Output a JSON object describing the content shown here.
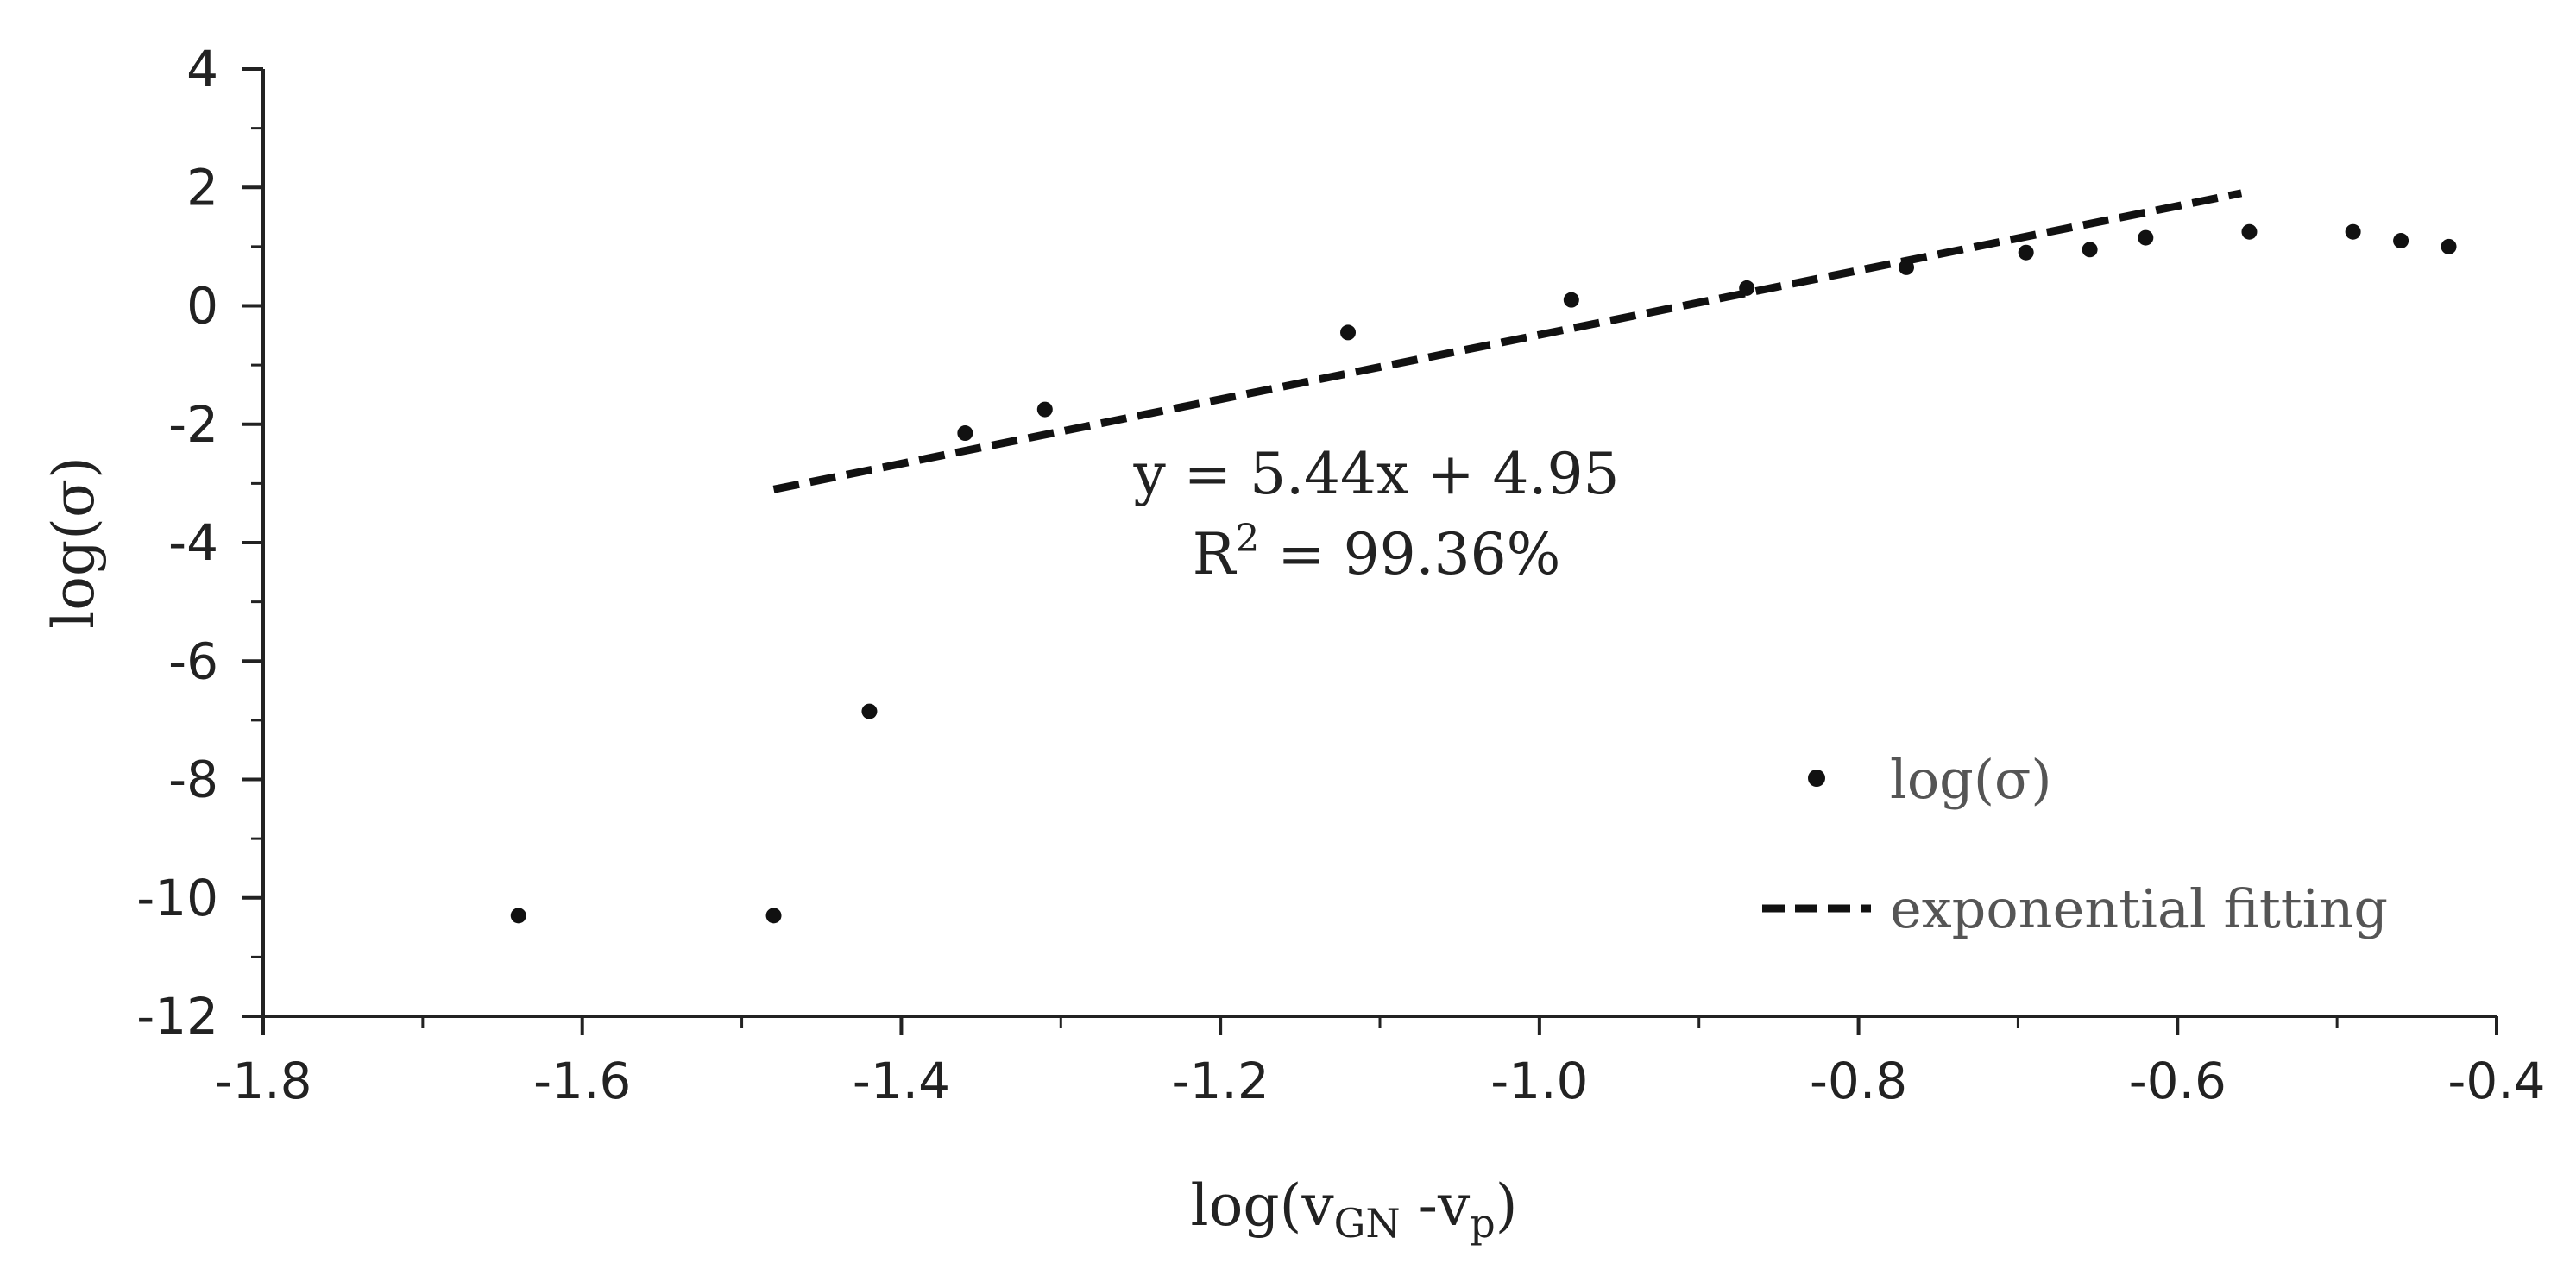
{
  "chart_data": {
    "type": "scatter",
    "xlabel": {
      "main": "log(v",
      "sub1": "GN",
      "mid": " -v",
      "sub2": "p",
      "end": ")"
    },
    "ylabel": "log(σ)",
    "xlim": [
      -1.8,
      -0.4
    ],
    "ylim": [
      -12,
      4
    ],
    "x_ticks": [
      -1.8,
      -1.6,
      -1.4,
      -1.2,
      -1.0,
      -0.8,
      -0.6,
      -0.4
    ],
    "x_tick_labels": [
      "-1.8",
      "-1.6",
      "-1.4",
      "-1.2",
      "-1.0",
      "-0.8",
      "-0.6",
      "-0.4"
    ],
    "y_ticks": [
      -12,
      -10,
      -8,
      -6,
      -4,
      -2,
      0,
      2,
      4
    ],
    "y_tick_labels": [
      "-12",
      "-10",
      "-8",
      "-6",
      "-4",
      "-2",
      "0",
      "2",
      "4"
    ],
    "grid": false,
    "legend_position": "lower-right",
    "series": [
      {
        "name": "log(σ)",
        "kind": "points",
        "color": "#111111",
        "points": [
          [
            -1.64,
            -10.3
          ],
          [
            -1.48,
            -10.3
          ],
          [
            -1.42,
            -6.85
          ],
          [
            -1.36,
            -2.15
          ],
          [
            -1.31,
            -1.75
          ],
          [
            -1.12,
            -0.45
          ],
          [
            -0.98,
            0.1
          ],
          [
            -0.87,
            0.3
          ],
          [
            -0.77,
            0.65
          ],
          [
            -0.695,
            0.9
          ],
          [
            -0.655,
            0.95
          ],
          [
            -0.62,
            1.15
          ],
          [
            -0.555,
            1.25
          ],
          [
            -0.49,
            1.25
          ],
          [
            -0.46,
            1.1
          ],
          [
            -0.43,
            1.0
          ]
        ]
      },
      {
        "name": "exponential fitting",
        "kind": "dashed-line",
        "color": "#111111",
        "x_range": [
          -1.48,
          -0.56
        ],
        "slope": 5.44,
        "intercept": 4.95
      }
    ],
    "annotation": {
      "equation": "y = 5.44x + 4.95",
      "r2_prefix": "R",
      "r2_sup": "2",
      "r2_value": " = 99.36%"
    }
  }
}
